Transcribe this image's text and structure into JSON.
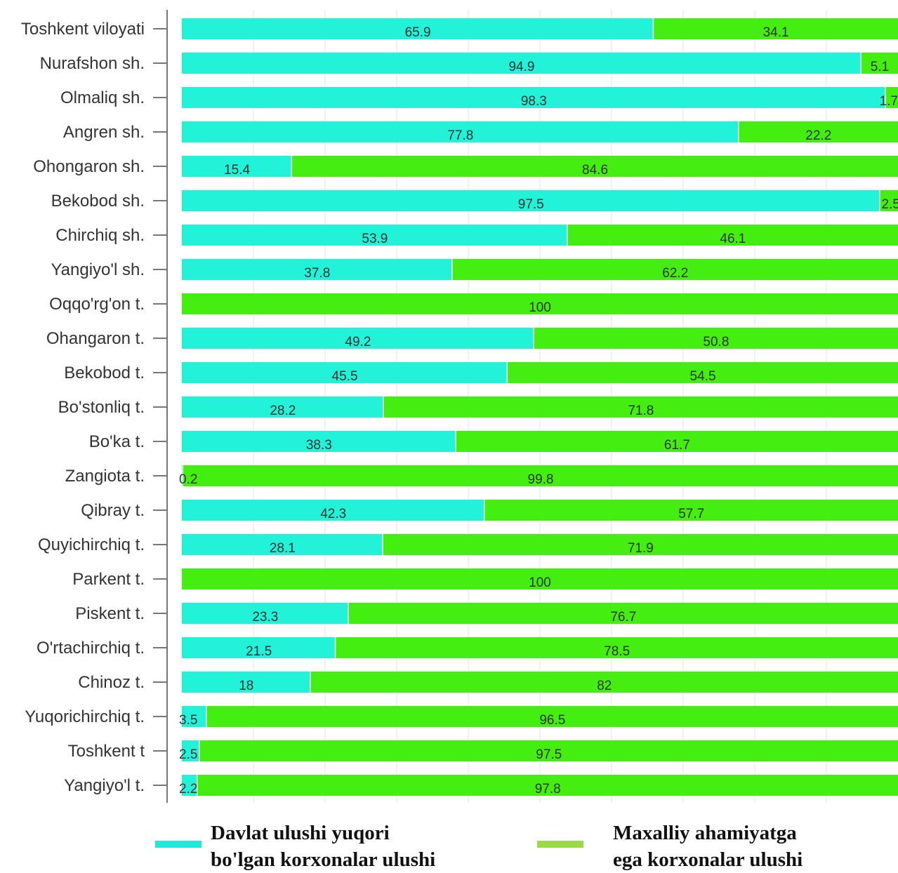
{
  "chart_data": {
    "type": "bar",
    "orientation": "horizontal",
    "stacked": true,
    "categories": [
      "Toshkent viloyati",
      "Nurafshon sh.",
      "Olmaliq sh.",
      "Angren sh.",
      "Ohongaron sh.",
      "Bekobod sh.",
      "Chirchiq sh.",
      "Yangiyo'l sh.",
      "Oqqo'rg'on t.",
      "Ohangaron t.",
      "Bekobod t.",
      "Bo'stonliq t.",
      "Bo'ka t.",
      "Zangiota t.",
      "Qibray t.",
      "Quyichirchiq t.",
      "Parkent t.",
      "Piskent t.",
      "O'rtachirchiq t.",
      "Chinoz t.",
      "Yuqorichirchiq t.",
      "Toshkent t",
      "Yangiyo'l t."
    ],
    "series": [
      {
        "name": "Davlat ulushi yuqori bo'lgan korxonalar ulushi",
        "color": "#22f2d8",
        "values": [
          65.9,
          94.9,
          98.3,
          77.8,
          15.4,
          97.5,
          53.9,
          37.8,
          0,
          49.2,
          45.5,
          28.2,
          38.3,
          0.2,
          42.3,
          28.1,
          0,
          23.3,
          21.5,
          18,
          3.5,
          2.5,
          2.2
        ],
        "labels": [
          "65.9",
          "94.9",
          "98.3",
          "77.8",
          "15.4",
          "97.5",
          "53.9",
          "37.8",
          "",
          "49.2",
          "45.5",
          "28.2",
          "38.3",
          "0.2",
          "42.3",
          "28.1",
          "",
          "23.3",
          "21.5",
          "18",
          "3.5",
          "2.5",
          "2.2"
        ]
      },
      {
        "name": "Maxalliy ahamiyatga ega korxonalar ulushi",
        "color": "#44ee11",
        "values": [
          34.1,
          5.1,
          1.7,
          22.2,
          84.6,
          2.5,
          46.1,
          62.2,
          100,
          50.8,
          54.5,
          71.8,
          61.7,
          99.8,
          57.7,
          71.9,
          100,
          76.7,
          78.5,
          82,
          96.5,
          97.5,
          97.8
        ],
        "labels": [
          "34.1",
          "5.1",
          "1.7",
          "22.2",
          "84.6",
          "2.5",
          "46.1",
          "62.2",
          "100",
          "50.8",
          "54.5",
          "71.8",
          "61.7",
          "99.8",
          "57.7",
          "71.9",
          "100",
          "76.7",
          "78.5",
          "82",
          "96.5",
          "97.5",
          "97.8"
        ]
      }
    ],
    "xlim": [
      0,
      100
    ],
    "grid": true
  },
  "legend": {
    "items": [
      {
        "line1": "Davlat ulushi yuqori",
        "line2": "bo'lgan korxonalar ulushi",
        "color": "#22e8dc"
      },
      {
        "line1": "Maxalliy ahamiyatga",
        "line2": "ega korxonalar ulushi",
        "color": "#9ad94a"
      }
    ]
  }
}
